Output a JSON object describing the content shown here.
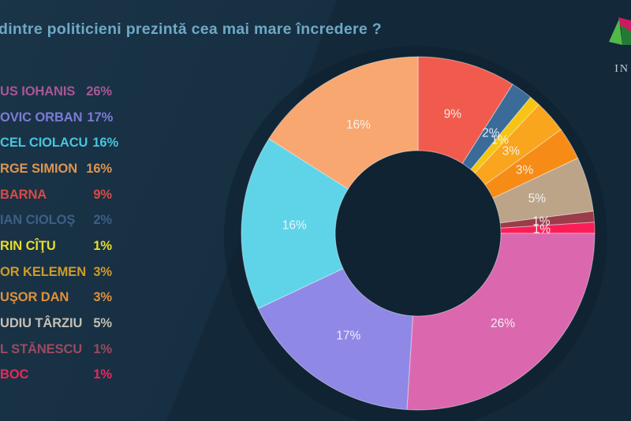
{
  "title": "dintre politicieni prezintă cea mai mare încredere ?",
  "logo": {
    "brand_text": "IN"
  },
  "chart_data": {
    "type": "pie",
    "donut": true,
    "title": "dintre politicieni prezintă cea mai mare încredere ?",
    "unit": "%",
    "legend_position": "left",
    "slice_label_format": "{value}%",
    "series": [
      {
        "label": "US IOHANIS",
        "value": 26,
        "color": "#db68ae",
        "legend_text_color": "#a85795"
      },
      {
        "label": "OVIC ORBAN",
        "value": 17,
        "color": "#8f88e6",
        "legend_text_color": "#7d7bd6"
      },
      {
        "label": "CEL CIOLACU",
        "value": 16,
        "color": "#5fd4e9",
        "legend_text_color": "#49c4de"
      },
      {
        "label": "RGE SIMION",
        "value": 16,
        "color": "#f8a770",
        "legend_text_color": "#de9551"
      },
      {
        "label": "BARNA",
        "value": 9,
        "color": "#f05b4d",
        "legend_text_color": "#d94b43"
      },
      {
        "label": "IAN CIOLOŞ",
        "value": 2,
        "color": "#3a6b99",
        "legend_text_color": "#3e5f85"
      },
      {
        "label": "RIN CÎŢU",
        "value": 1,
        "color": "#f6c513",
        "legend_text_color": "#e8dc2e"
      },
      {
        "label": "OR KELEMEN",
        "value": 3,
        "color": "#f9a51d",
        "legend_text_color": "#d19c27"
      },
      {
        "label": "UŞOR DAN",
        "value": 3,
        "color": "#f68c16",
        "legend_text_color": "#e0913c"
      },
      {
        "label": "UDIU TÂRZIU",
        "value": 5,
        "color": "#bca489",
        "legend_text_color": "#c6bfb5"
      },
      {
        "label": "L STĂNESCU",
        "value": 1,
        "color": "#9c3b49",
        "legend_text_color": "#9c4a60"
      },
      {
        "label": "BOC",
        "value": 1,
        "color": "#fa1e58",
        "legend_text_color": "#e8295b"
      }
    ],
    "draw_order_clockwise_from_top": [
      "BARNA",
      "IAN CIOLOŞ",
      "RIN CÎŢU",
      "OR KELEMEN",
      "UŞOR DAN",
      "UDIU TÂRZIU",
      "L STĂNESCU",
      "BOC",
      "US IOHANIS",
      "OVIC ORBAN",
      "CEL CIOLACU",
      "RGE SIMION"
    ]
  }
}
